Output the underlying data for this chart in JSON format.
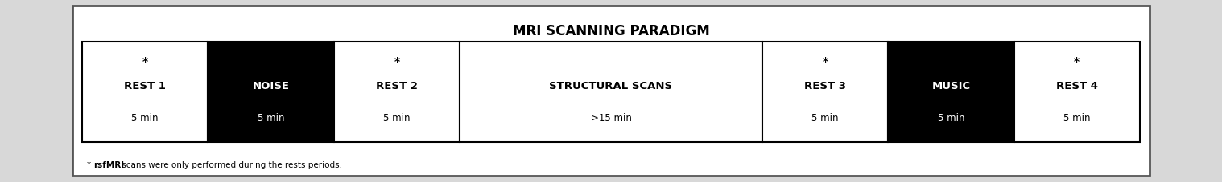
{
  "title": "MRI SCANNING PARADIGM",
  "title_fontsize": 12,
  "footnote_prefix": "* ",
  "footnote_bold": "rsfMRI",
  "footnote_suffix": " scans were only performed during the rests periods.",
  "footnote_fontsize": 7.5,
  "blocks": [
    {
      "label": "REST 1",
      "sublabel": "5 min",
      "bg": "white",
      "fg": "black",
      "star": true,
      "weight": 1.0
    },
    {
      "label": "NOISE",
      "sublabel": "5 min",
      "bg": "black",
      "fg": "white",
      "star": false,
      "weight": 1.0
    },
    {
      "label": "REST 2",
      "sublabel": "5 min",
      "bg": "white",
      "fg": "black",
      "star": true,
      "weight": 1.0
    },
    {
      "label": "STRUCTURAL SCANS",
      "sublabel": ">15 min",
      "bg": "white",
      "fg": "black",
      "star": false,
      "weight": 2.4
    },
    {
      "label": "REST 3",
      "sublabel": "5 min",
      "bg": "white",
      "fg": "black",
      "star": true,
      "weight": 1.0
    },
    {
      "label": "MUSIC",
      "sublabel": "5 min",
      "bg": "black",
      "fg": "white",
      "star": false,
      "weight": 1.0
    },
    {
      "label": "REST 4",
      "sublabel": "5 min",
      "bg": "white",
      "fg": "black",
      "star": true,
      "weight": 1.0
    }
  ],
  "outer_bg": "white",
  "outer_border": "#555555",
  "fig_bg": "#d8d8d8",
  "block_border": "black",
  "label_fontsize": 9.5,
  "sublabel_fontsize": 8.5,
  "star_fontsize": 10,
  "outer_lw": 2.0,
  "block_lw": 1.5
}
